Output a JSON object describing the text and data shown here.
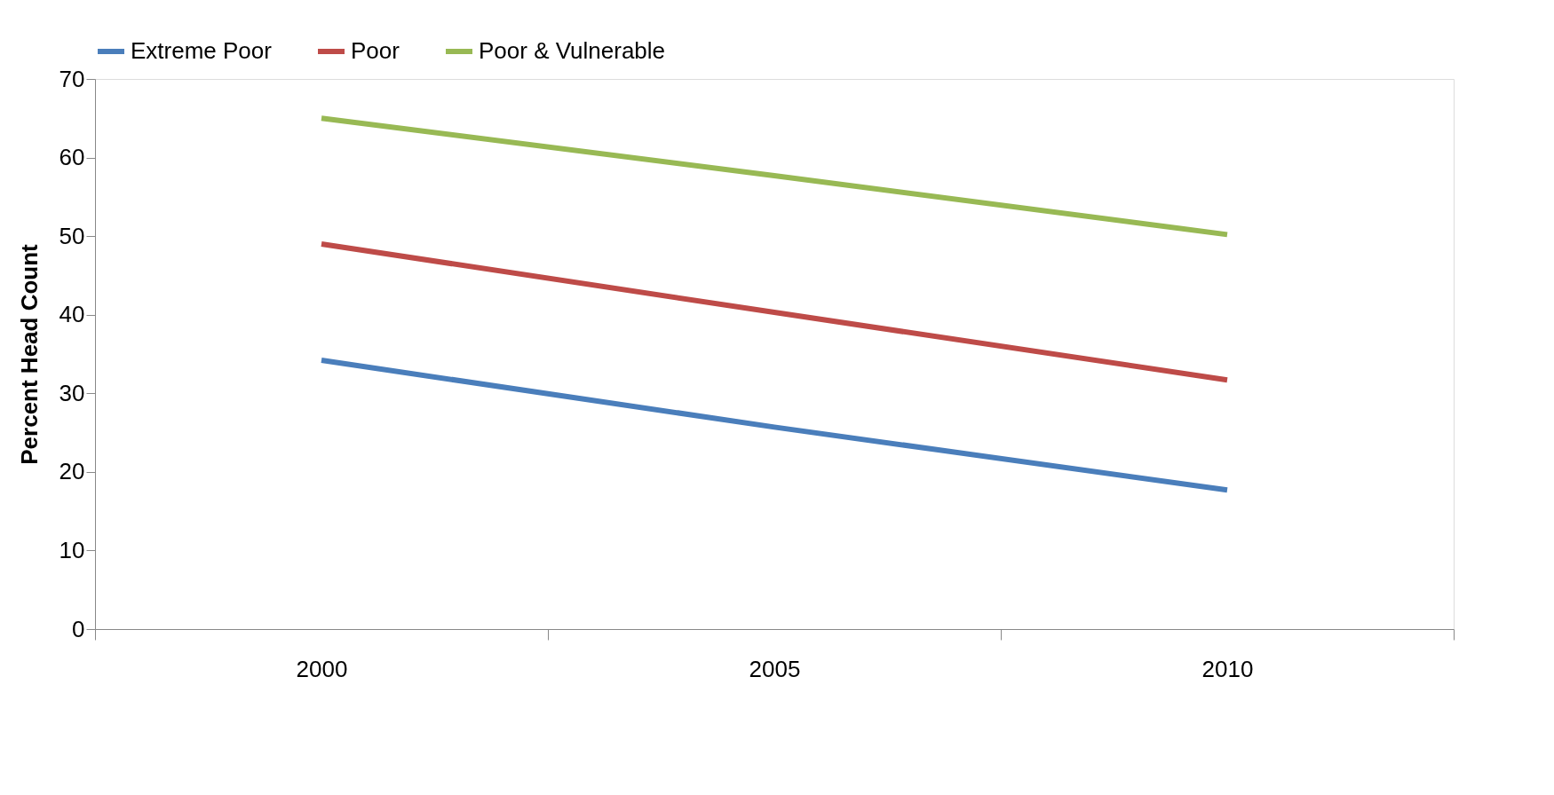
{
  "chart_data": {
    "type": "line",
    "ylabel": "Percent Head Count",
    "categories": [
      "2000",
      "2005",
      "2010"
    ],
    "series": [
      {
        "name": "Extreme Poor",
        "color": "#4a7ebb",
        "values": [
          34.2,
          25.7,
          17.7
        ]
      },
      {
        "name": "Poor",
        "color": "#be4b48",
        "values": [
          49.0,
          40.3,
          31.7
        ]
      },
      {
        "name": "Poor & Vulnerable",
        "color": "#98b954",
        "values": [
          65.0,
          57.7,
          50.2
        ]
      }
    ],
    "ylim": [
      0,
      70
    ],
    "yticks": [
      0,
      10,
      20,
      30,
      40,
      50,
      60,
      70
    ],
    "grid": false,
    "legend": "top",
    "marker": "none",
    "line_style": "solid"
  }
}
